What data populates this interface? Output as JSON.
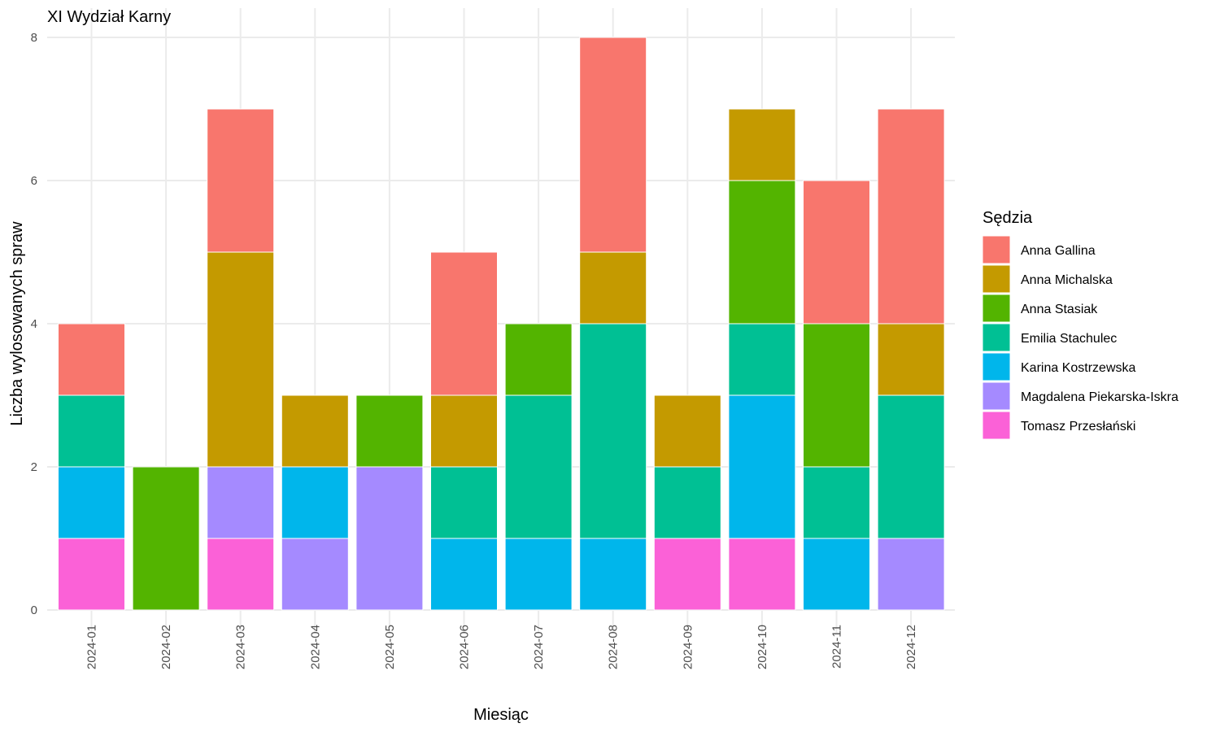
{
  "chart_data": {
    "type": "bar",
    "stacked": true,
    "title": "XI Wydział Karny",
    "xlabel": "Miesiąc",
    "ylabel": "Liczba wylosowanych spraw",
    "ylim": [
      0,
      8
    ],
    "yticks": [
      0,
      2,
      4,
      6,
      8
    ],
    "grid": true,
    "legend_title": "Sędzia",
    "legend_position": "right",
    "categories": [
      "2024-01",
      "2024-02",
      "2024-03",
      "2024-04",
      "2024-05",
      "2024-06",
      "2024-07",
      "2024-08",
      "2024-09",
      "2024-10",
      "2024-11",
      "2024-12"
    ],
    "series": [
      {
        "name": "Tomasz Przesłański",
        "color": "#FB61D7",
        "values": [
          1,
          0,
          1,
          0,
          0,
          0,
          0,
          0,
          1,
          1,
          0,
          0
        ]
      },
      {
        "name": "Magdalena Piekarska-Iskra",
        "color": "#A58AFF",
        "values": [
          0,
          0,
          1,
          1,
          2,
          0,
          0,
          0,
          0,
          0,
          0,
          1
        ]
      },
      {
        "name": "Karina Kostrzewska",
        "color": "#00B6EB",
        "values": [
          1,
          0,
          0,
          1,
          0,
          1,
          1,
          1,
          0,
          2,
          1,
          0
        ]
      },
      {
        "name": "Emilia Stachulec",
        "color": "#00C094",
        "values": [
          1,
          0,
          0,
          0,
          0,
          1,
          2,
          3,
          1,
          1,
          1,
          2
        ]
      },
      {
        "name": "Anna Stasiak",
        "color": "#53B400",
        "values": [
          0,
          2,
          0,
          0,
          1,
          0,
          1,
          0,
          0,
          2,
          2,
          0
        ]
      },
      {
        "name": "Anna Michalska",
        "color": "#C49A00",
        "values": [
          0,
          0,
          3,
          1,
          0,
          1,
          0,
          1,
          1,
          1,
          0,
          1
        ]
      },
      {
        "name": "Anna Gallina",
        "color": "#F8766D",
        "values": [
          1,
          0,
          2,
          0,
          0,
          2,
          0,
          3,
          0,
          0,
          2,
          3
        ]
      }
    ],
    "legend_order": [
      "Anna Gallina",
      "Anna Michalska",
      "Anna Stasiak",
      "Emilia Stachulec",
      "Karina Kostrzewska",
      "Magdalena Piekarska-Iskra",
      "Tomasz Przesłański"
    ]
  }
}
